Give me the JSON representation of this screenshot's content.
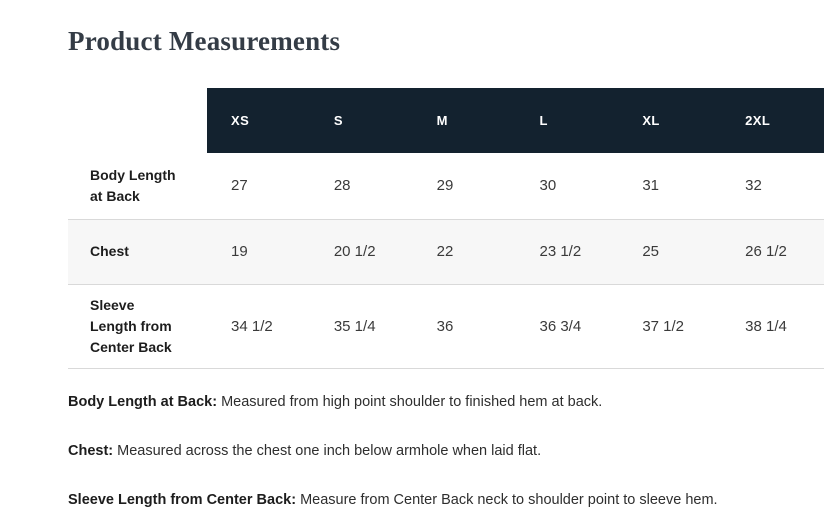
{
  "title": "Product Measurements",
  "table": {
    "columns": [
      "XS",
      "S",
      "M",
      "L",
      "XL",
      "2XL"
    ],
    "rows": [
      {
        "label": "Body Length at Back",
        "label_lines": [
          "Body Length",
          "at Back"
        ],
        "values": [
          "27",
          "28",
          "29",
          "30",
          "31",
          "32"
        ]
      },
      {
        "label": "Chest",
        "label_lines": [
          "Chest"
        ],
        "values": [
          "19",
          "20 1/2",
          "22",
          "23 1/2",
          "25",
          "26 1/2"
        ]
      },
      {
        "label": "Sleeve Length from Center Back",
        "label_lines": [
          "Sleeve",
          "Length from",
          "Center Back"
        ],
        "values": [
          "34 1/2",
          "35 1/4",
          "36",
          "36 3/4",
          "37 1/2",
          "38 1/4"
        ]
      }
    ]
  },
  "notes": [
    {
      "term": "Body Length at Back:",
      "text": "Measured from high point shoulder to finished hem at back."
    },
    {
      "term": "Chest:",
      "text": "Measured across the chest one inch below armhole when laid flat."
    },
    {
      "term": "Sleeve Length from Center Back:",
      "text": "Measure from Center Back neck to shoulder point to sleeve hem."
    }
  ],
  "colors": {
    "header_bg": "#13222f",
    "header_text": "#ffffff",
    "alt_row_bg": "#f7f7f7",
    "border": "#d9d9d9",
    "title_text": "#343c46"
  }
}
